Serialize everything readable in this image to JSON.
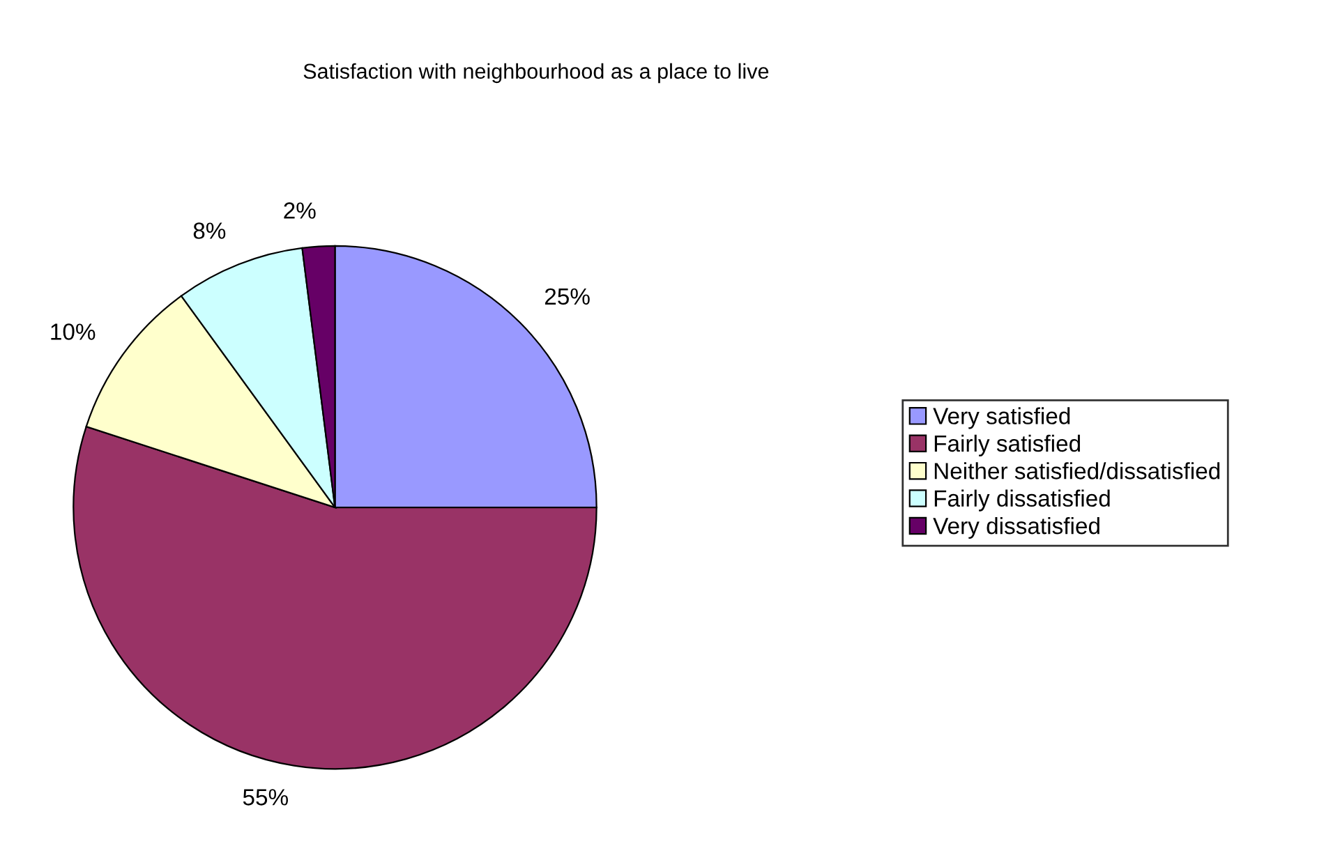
{
  "chart_data": {
    "type": "pie",
    "title": "Satisfaction with neighbourhood as a place to live",
    "categories": [
      "Very satisfied",
      "Fairly satisfied",
      "Neither satisfied/dissatisfied",
      "Fairly dissatisfied",
      "Very dissatisfied"
    ],
    "values": [
      25,
      55,
      10,
      8,
      2
    ],
    "colors": [
      "#9999ff",
      "#993366",
      "#ffffcc",
      "#ccffff",
      "#660066"
    ],
    "value_labels": [
      "25%",
      "55%",
      "10%",
      "8%",
      "2%"
    ],
    "legend": "right"
  }
}
